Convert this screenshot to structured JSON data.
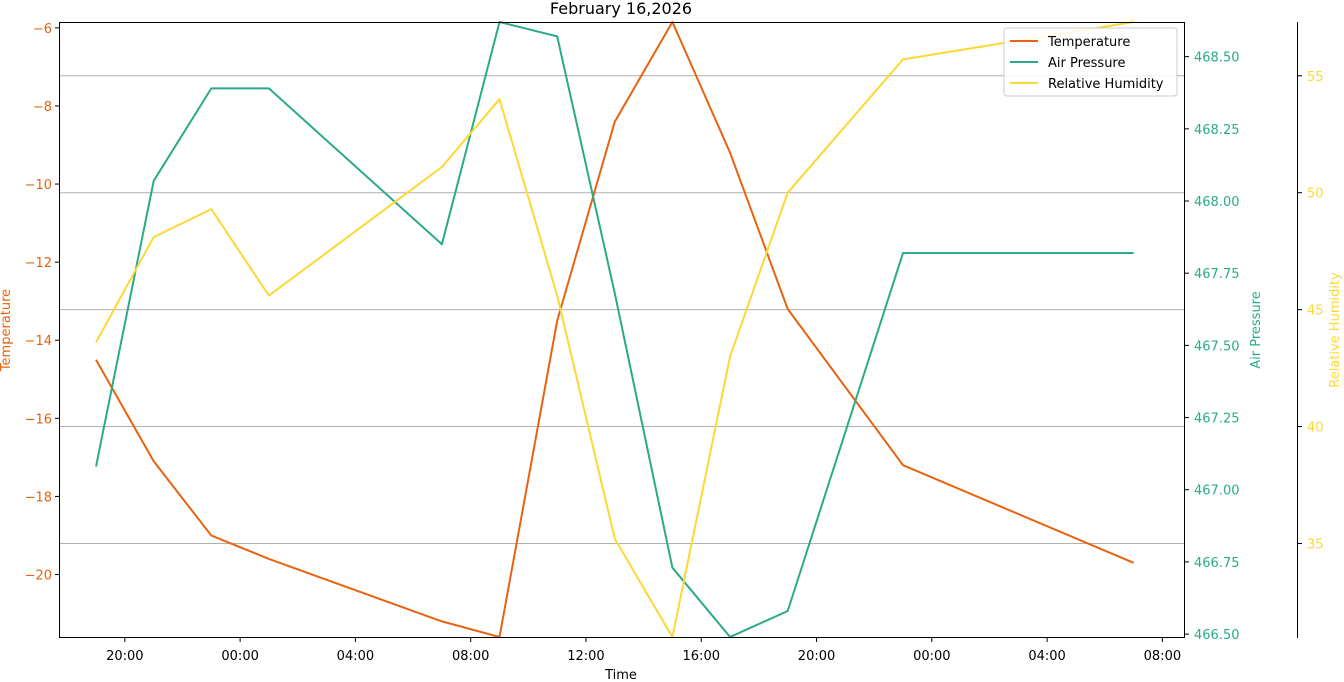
{
  "chart_data": {
    "type": "line",
    "title": "February 16,2026",
    "xlabel": "Time",
    "x_ticks": [
      "20:00",
      "00:00",
      "04:00",
      "08:00",
      "12:00",
      "16:00",
      "20:00",
      "00:00",
      "04:00",
      "08:00"
    ],
    "x": [
      "2026-02-16 19:00",
      "2026-02-16 21:00",
      "2026-02-16 23:00",
      "2026-02-17 01:00",
      "2026-02-17 07:00",
      "2026-02-17 09:00",
      "2026-02-17 11:00",
      "2026-02-17 13:00",
      "2026-02-17 15:00",
      "2026-02-17 17:00",
      "2026-02-17 19:00",
      "2026-02-17 23:00",
      "2026-02-18 07:00"
    ],
    "xlim": [
      "2026-02-16 17:45",
      "2026-02-18 08:45"
    ],
    "grid": "horizontal",
    "legend_position": "top-right",
    "series": [
      {
        "name": "Temperature",
        "axis_label": "Temperature",
        "color": "#e8620f",
        "ylim": [
          -21.6,
          -5.85
        ],
        "y_ticks": [
          -20,
          -18,
          -16,
          -14,
          -12,
          -10,
          -8,
          -6
        ],
        "values": [
          -14.5,
          -17.1,
          -19.0,
          -19.6,
          -21.2,
          -21.6,
          -13.5,
          -8.4,
          -5.85,
          -9.2,
          -13.2,
          -17.2,
          -19.7
        ]
      },
      {
        "name": "Air Pressure",
        "axis_label": "Air Pressure",
        "color": "#2aaa8a",
        "ylim": [
          466.49,
          468.62
        ],
        "y_ticks": [
          "466.50",
          "466.75",
          "467.00",
          "467.25",
          "467.50",
          "467.75",
          "468.00",
          "468.25",
          "468.50"
        ],
        "values": [
          467.08,
          468.07,
          468.39,
          468.39,
          467.85,
          468.62,
          468.57,
          467.68,
          466.73,
          466.49,
          466.58,
          467.82,
          467.82
        ]
      },
      {
        "name": "Relative Humidity",
        "axis_label": "Relative Humidity",
        "color": "#fdd835",
        "ylim": [
          31.0,
          57.3
        ],
        "y_ticks": [
          35,
          40,
          45,
          50,
          55
        ],
        "values": [
          43.6,
          48.1,
          49.3,
          45.6,
          51.1,
          54.0,
          45.6,
          35.2,
          31.0,
          43.0,
          50.0,
          55.7,
          57.3
        ]
      }
    ]
  }
}
